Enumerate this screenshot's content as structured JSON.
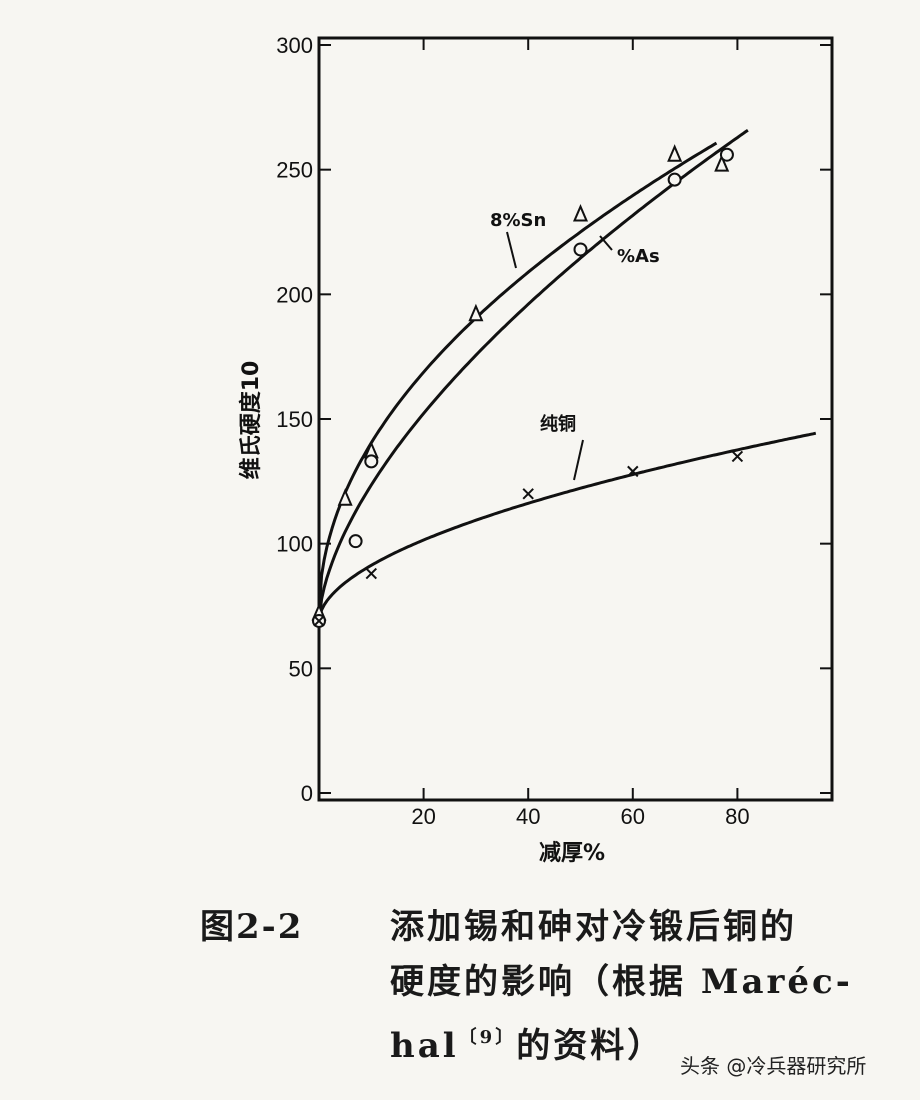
{
  "chart_data": {
    "type": "line",
    "ylabel": "维氏硬度10",
    "xlabel": "减厚%",
    "xlim": [
      0,
      100
    ],
    "ylim": [
      0,
      300
    ],
    "x_ticks": [
      20,
      40,
      60,
      80
    ],
    "y_ticks": [
      0,
      50,
      100,
      150,
      200,
      250,
      300
    ],
    "grid": false,
    "series": [
      {
        "name": "8%Sn",
        "marker": "triangle",
        "points": [
          [
            0,
            72
          ],
          [
            5,
            118
          ],
          [
            10,
            137
          ],
          [
            30,
            192
          ],
          [
            50,
            232
          ],
          [
            68,
            256
          ],
          [
            77,
            252
          ]
        ],
        "curve_x_max": 76
      },
      {
        "name": "%As",
        "marker": "circle",
        "points": [
          [
            0,
            69
          ],
          [
            7,
            101
          ],
          [
            10,
            133
          ],
          [
            50,
            218
          ],
          [
            68,
            246
          ],
          [
            78,
            256
          ]
        ],
        "curve_x_max": 82
      },
      {
        "name": "纯铜",
        "marker": "x",
        "points": [
          [
            0,
            69
          ],
          [
            10,
            88
          ],
          [
            40,
            120
          ],
          [
            60,
            129
          ],
          [
            80,
            135
          ]
        ],
        "curve_x_max": 95
      }
    ]
  },
  "caption": {
    "figure_number": "图2-2",
    "line1": "添加锡和砷对冷锻后铜的",
    "line2": "硬度的影响（根据 Maréc-",
    "line3_prefix": "hal",
    "line3_ref": "〔9〕",
    "line3_suffix": "的资料）"
  },
  "watermark": "头条 @冷兵器研究所"
}
